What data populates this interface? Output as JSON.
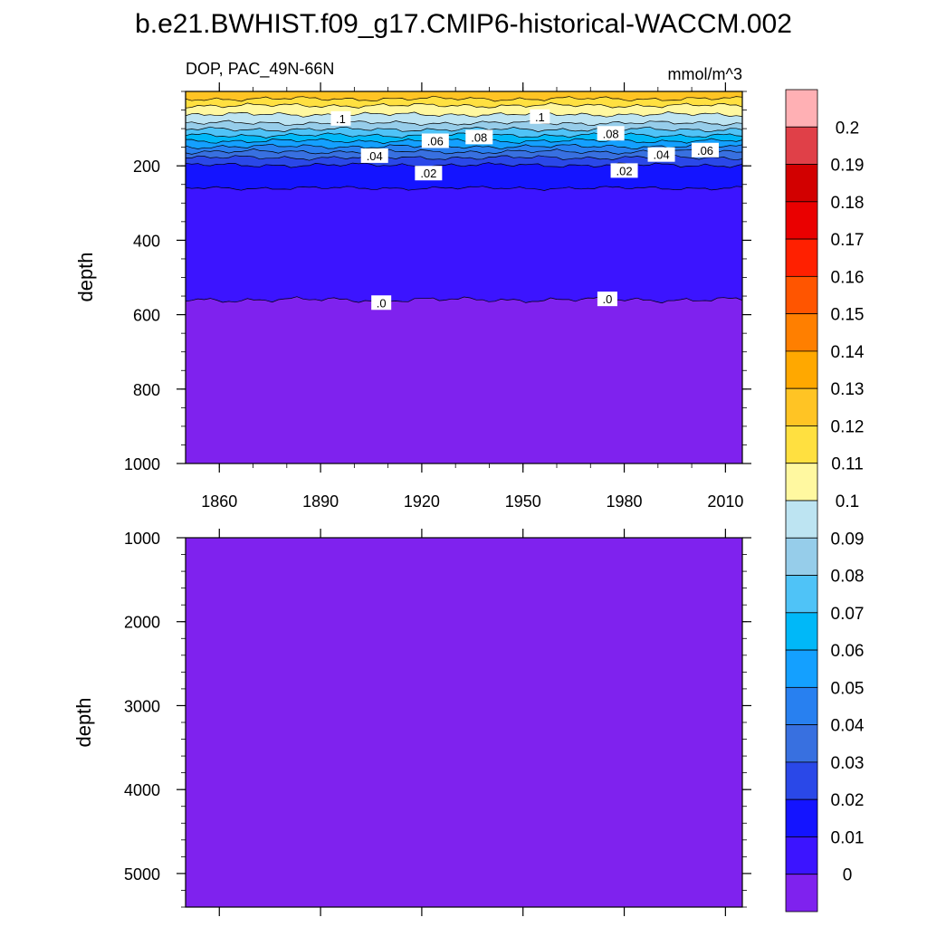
{
  "page": {
    "title": "b.e21.BWHIST.f09_g17.CMIP6-historical-WACCM.002"
  },
  "chart_data": [
    {
      "type": "heatmap",
      "panel": "upper",
      "subtitle_left": "DOP, PAC_49N-66N",
      "subtitle_right": "mmol/m^3",
      "xlabel": "",
      "ylabel": "depth",
      "xlim": [
        1850,
        2015
      ],
      "ylim": [
        0,
        1000
      ],
      "y_reversed": true,
      "x_ticks": [
        1860,
        1890,
        1920,
        1950,
        1980,
        2010
      ],
      "y_ticks": [
        200,
        400,
        600,
        800,
        1000
      ],
      "contour_depths": [
        {
          "level": 0.12,
          "depth": 20
        },
        {
          "level": 0.11,
          "depth": 38
        },
        {
          "level": 0.1,
          "depth": 62
        },
        {
          "level": 0.09,
          "depth": 85
        },
        {
          "level": 0.08,
          "depth": 102
        },
        {
          "level": 0.07,
          "depth": 118
        },
        {
          "level": 0.06,
          "depth": 133
        },
        {
          "level": 0.05,
          "depth": 148
        },
        {
          "level": 0.04,
          "depth": 162
        },
        {
          "level": 0.03,
          "depth": 178
        },
        {
          "level": 0.02,
          "depth": 198
        },
        {
          "level": 0.01,
          "depth": 260
        },
        {
          "level": 0.0,
          "depth": 560
        }
      ],
      "contour_labels": [
        {
          "text": ".1",
          "year": 1896,
          "depth": 75
        },
        {
          "text": ".1",
          "year": 1955,
          "depth": 70
        },
        {
          "text": ".06",
          "year": 1924,
          "depth": 135
        },
        {
          "text": ".08",
          "year": 1937,
          "depth": 125
        },
        {
          "text": ".08",
          "year": 1976,
          "depth": 115
        },
        {
          "text": ".04",
          "year": 1906,
          "depth": 175
        },
        {
          "text": ".04",
          "year": 1991,
          "depth": 172
        },
        {
          "text": ".06",
          "year": 2004,
          "depth": 160
        },
        {
          "text": ".02",
          "year": 1922,
          "depth": 222
        },
        {
          "text": ".02",
          "year": 1980,
          "depth": 215
        },
        {
          "text": ".0",
          "year": 1908,
          "depth": 570
        },
        {
          "text": ".0",
          "year": 1975,
          "depth": 560
        }
      ]
    },
    {
      "type": "heatmap",
      "panel": "lower",
      "xlabel": "",
      "ylabel": "depth",
      "xlim": [
        1850,
        2015
      ],
      "ylim": [
        1000,
        5400
      ],
      "y_reversed": true,
      "y_ticks": [
        1000,
        2000,
        3000,
        4000,
        5000
      ],
      "field_value": 0.0
    }
  ],
  "colorbar": {
    "labels": [
      "0.2",
      "0.19",
      "0.18",
      "0.17",
      "0.16",
      "0.15",
      "0.14",
      "0.13",
      "0.12",
      "0.11",
      "0.1",
      "0.09",
      "0.08",
      "0.07",
      "0.06",
      "0.05",
      "0.04",
      "0.03",
      "0.02",
      "0.01",
      "0"
    ],
    "colors": [
      "#ffb0b4",
      "#e04048",
      "#d20000",
      "#ea0000",
      "#ff2000",
      "#ff5500",
      "#ff7f00",
      "#ffa800",
      "#ffc424",
      "#ffe040",
      "#fff8a0",
      "#bde4f2",
      "#96cdea",
      "#4fc3f7",
      "#00b8f8",
      "#14a0ff",
      "#2880f0",
      "#3870e0",
      "#2a48e8",
      "#1414ff",
      "#3c14ff",
      "#7f22ee"
    ]
  }
}
